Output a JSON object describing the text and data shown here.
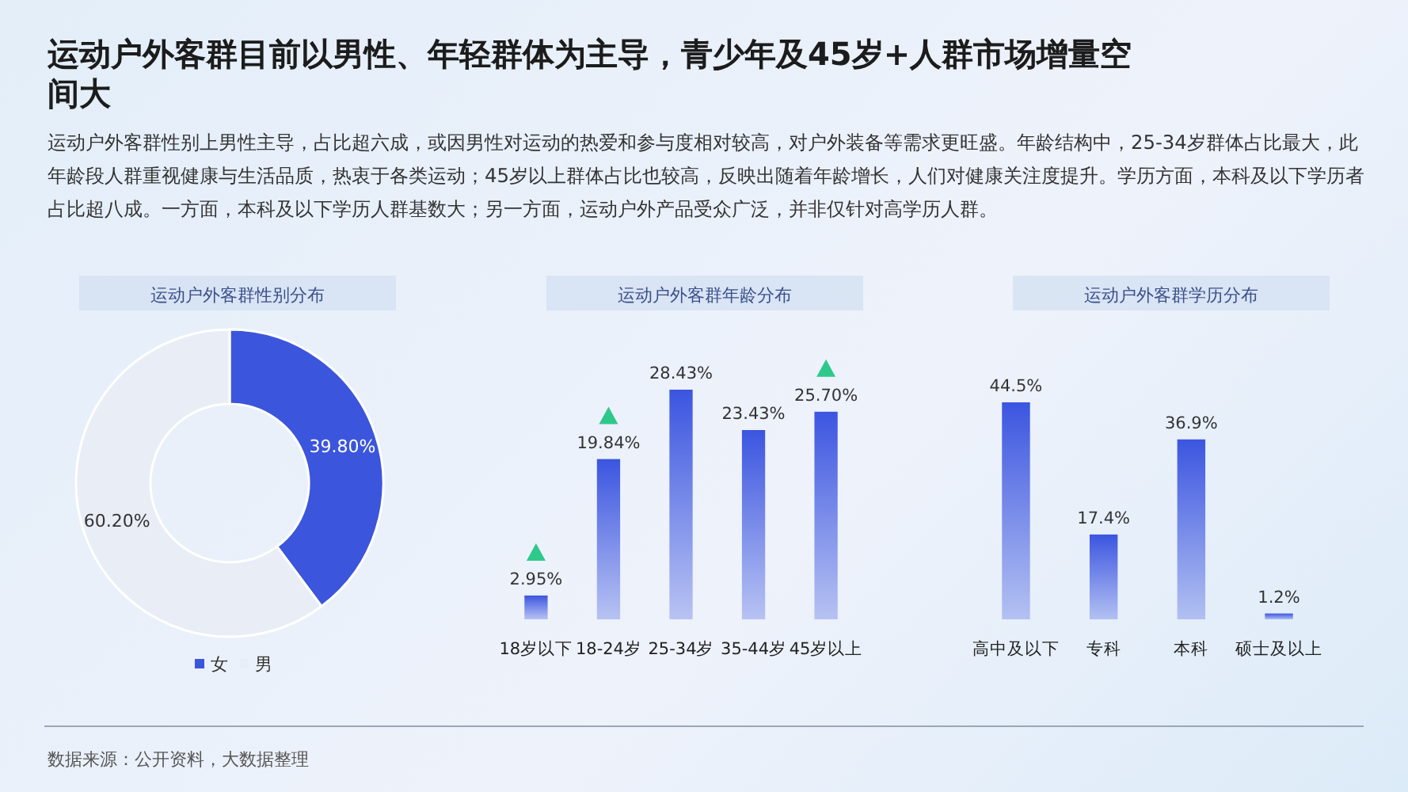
{
  "chart_data": [
    {
      "type": "other",
      "title": "运动户外客群目前以男性、年轻群体为主导，青少年及45岁+人群市场增量空间大",
      "subtitle": "运动户外客群性别上男性主导，占比超六成，或因男性对运动的热爱和参与度相对较高，对户外装备等需求更旺盛。年龄结构中，25-34岁群体占比最大，此年龄段人群重视健康与生活品质，热衷于各类运动；45岁以上群体占比也较高，反映出随着年龄增长，人们对健康关注度提升。学历方面，本科及以下学历者占比超八成。一方面，本科及以下学历人群基数大；另一方面，运动户外产品受众广泛，并非仅针对高学历人群。",
      "annotations": [
        "数据来源：公开资料，大数据整理"
      ]
    },
    {
      "type": "donut",
      "title": "运动户外客群性别分布",
      "categories": [
        "女",
        "男"
      ],
      "values": [
        39.8,
        60.2
      ],
      "colors": [
        "#3b55dc",
        "#e9edf6"
      ],
      "value_labels": [
        "39.80%",
        "60.20%"
      ],
      "legend": "bottom"
    },
    {
      "type": "bar",
      "title": "运动户外客群年龄分布",
      "categories": [
        "18岁以下",
        "18-24岁",
        "25-34岁",
        "35-44岁",
        "45岁以上"
      ],
      "values": [
        2.95,
        19.84,
        28.43,
        23.43,
        25.7
      ],
      "color": "#3b55e0",
      "value_labels": [
        "2.95%",
        "19.84%",
        "28.43%",
        "23.43%",
        "25.70%"
      ]
    },
    {
      "type": "bar",
      "title": "运动户外客群学历分布",
      "categories": [
        "高中及以下",
        "专科",
        "本科",
        "硕士及以上"
      ],
      "values": [
        44.5,
        17.4,
        36.9,
        1.2
      ],
      "color": "#3b55e0",
      "value_labels": [
        "44.5%",
        "17.4%",
        "36.9%",
        "1.2%"
      ]
    }
  ]
}
